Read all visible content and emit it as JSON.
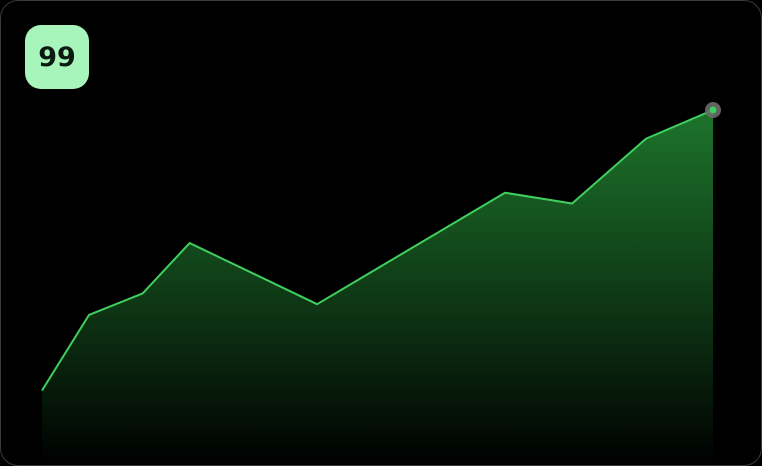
{
  "chart_data": {
    "type": "area",
    "x": [
      0,
      7,
      15,
      22,
      41,
      69,
      79,
      90,
      100
    ],
    "values": [
      21,
      42,
      48,
      62,
      45,
      76,
      73,
      91,
      99
    ],
    "xlim": [
      0,
      100
    ],
    "ylim": [
      0,
      99
    ],
    "color": "#3fcf5e"
  }
}
